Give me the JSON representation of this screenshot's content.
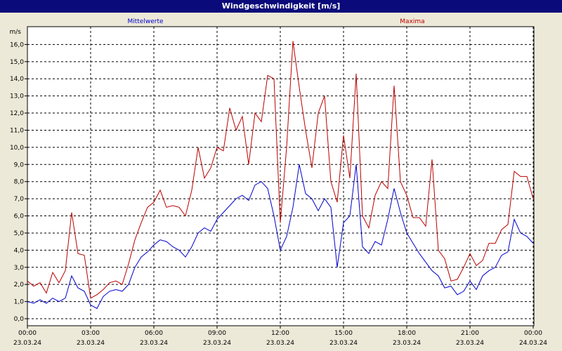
{
  "window": {
    "title": "Windgeschwindigkeit [m/s]"
  },
  "chart_data": {
    "type": "line",
    "title": "Windgeschwindigkeit [m/s]",
    "ylabel": "m/s",
    "ylim": [
      0,
      17
    ],
    "ytick_values": [
      0,
      1,
      2,
      3,
      4,
      5,
      6,
      7,
      8,
      9,
      10,
      11,
      12,
      13,
      14,
      15,
      16
    ],
    "ytick_labels": [
      "0,0",
      "1,0",
      "2,0",
      "3,0",
      "4,0",
      "5,0",
      "6,0",
      "7,0",
      "8,0",
      "9,0",
      "10,0",
      "11,0",
      "12,0",
      "13,0",
      "14,0",
      "15,0",
      "16,0"
    ],
    "xlim": [
      0,
      24
    ],
    "xtick_values": [
      0,
      3,
      6,
      9,
      12,
      15,
      18,
      21,
      24
    ],
    "xtick_time_labels": [
      "00:00",
      "03:00",
      "06:00",
      "09:00",
      "12:00",
      "15:00",
      "18:00",
      "21:00",
      "00:00"
    ],
    "xtick_date_labels": [
      "23.03.24",
      "23.03.24",
      "23.03.24",
      "23.03.24",
      "23.03.24",
      "23.03.24",
      "23.03.24",
      "23.03.24",
      "24.03.24"
    ],
    "grid": true,
    "series": [
      {
        "name": "Mittelwerte",
        "color": "#0000cc",
        "x": [
          0,
          0.3,
          0.6,
          0.9,
          1.2,
          1.5,
          1.8,
          2.1,
          2.4,
          2.7,
          3.0,
          3.3,
          3.6,
          3.9,
          4.2,
          4.5,
          4.8,
          5.1,
          5.4,
          5.7,
          6.0,
          6.3,
          6.6,
          6.9,
          7.2,
          7.5,
          7.8,
          8.1,
          8.4,
          8.7,
          9.0,
          9.3,
          9.6,
          9.9,
          10.2,
          10.5,
          10.8,
          11.1,
          11.4,
          11.7,
          12.0,
          12.3,
          12.6,
          12.9,
          13.2,
          13.5,
          13.8,
          14.1,
          14.4,
          14.7,
          15.0,
          15.3,
          15.6,
          15.9,
          16.2,
          16.5,
          16.8,
          17.1,
          17.4,
          17.7,
          18.0,
          18.3,
          18.6,
          18.9,
          19.2,
          19.5,
          19.8,
          20.1,
          20.4,
          20.7,
          21.0,
          21.3,
          21.6,
          21.9,
          22.2,
          22.5,
          22.8,
          23.1,
          23.4,
          23.7,
          24.0
        ],
        "values": [
          1.0,
          0.9,
          1.1,
          0.9,
          1.2,
          1.0,
          1.2,
          2.5,
          1.8,
          1.6,
          0.8,
          0.6,
          1.3,
          1.6,
          1.7,
          1.6,
          2.0,
          3.0,
          3.6,
          3.9,
          4.3,
          4.6,
          4.5,
          4.2,
          4.0,
          3.6,
          4.2,
          5.0,
          5.3,
          5.1,
          5.8,
          6.2,
          6.6,
          7.0,
          7.2,
          6.9,
          7.8,
          8.0,
          7.6,
          6.0,
          4.0,
          4.8,
          6.5,
          9.0,
          7.3,
          7.0,
          6.3,
          7.0,
          6.5,
          3.0,
          5.6,
          6.0,
          9.0,
          4.2,
          3.8,
          4.5,
          4.3,
          5.8,
          7.6,
          6.2,
          5.0,
          4.4,
          3.8,
          3.3,
          2.8,
          2.5,
          1.8,
          1.9,
          1.4,
          1.6,
          2.2,
          1.7,
          2.5,
          2.8,
          3.0,
          3.7,
          3.9,
          5.8,
          5.0,
          4.8,
          4.4
        ]
      },
      {
        "name": "Maxima",
        "color": "#bb0000",
        "x": [
          0,
          0.3,
          0.6,
          0.9,
          1.2,
          1.5,
          1.8,
          2.1,
          2.4,
          2.7,
          3.0,
          3.3,
          3.6,
          3.9,
          4.2,
          4.5,
          4.8,
          5.1,
          5.4,
          5.7,
          6.0,
          6.3,
          6.6,
          6.9,
          7.2,
          7.5,
          7.8,
          8.1,
          8.4,
          8.7,
          9.0,
          9.3,
          9.6,
          9.9,
          10.2,
          10.5,
          10.8,
          11.1,
          11.4,
          11.7,
          12.0,
          12.3,
          12.6,
          12.9,
          13.2,
          13.5,
          13.8,
          14.1,
          14.4,
          14.7,
          15.0,
          15.3,
          15.6,
          15.9,
          16.2,
          16.5,
          16.8,
          17.1,
          17.4,
          17.7,
          18.0,
          18.3,
          18.6,
          18.9,
          19.2,
          19.5,
          19.8,
          20.1,
          20.4,
          20.7,
          21.0,
          21.3,
          21.6,
          21.9,
          22.2,
          22.5,
          22.8,
          23.1,
          23.4,
          23.7,
          24.0
        ],
        "values": [
          2.2,
          1.9,
          2.1,
          1.5,
          2.7,
          2.1,
          2.8,
          6.2,
          3.8,
          3.7,
          1.2,
          1.4,
          1.7,
          2.1,
          2.2,
          2.0,
          3.2,
          4.6,
          5.6,
          6.5,
          6.8,
          7.5,
          6.5,
          6.6,
          6.5,
          6.0,
          7.5,
          10.0,
          8.2,
          8.8,
          10.0,
          9.8,
          12.3,
          11.0,
          11.8,
          9.0,
          12.0,
          11.5,
          14.2,
          14.0,
          5.6,
          10.0,
          16.2,
          13.5,
          11.0,
          8.8,
          12.0,
          13.0,
          8.0,
          6.8,
          10.7,
          8.2,
          14.3,
          6.0,
          5.3,
          7.2,
          8.0,
          7.6,
          13.6,
          8.0,
          7.2,
          5.9,
          5.9,
          5.4,
          9.3,
          4.0,
          3.5,
          2.2,
          2.3,
          3.0,
          3.8,
          3.1,
          3.4,
          4.4,
          4.4,
          5.2,
          5.5,
          8.6,
          8.3,
          8.3,
          7.0
        ]
      }
    ]
  }
}
